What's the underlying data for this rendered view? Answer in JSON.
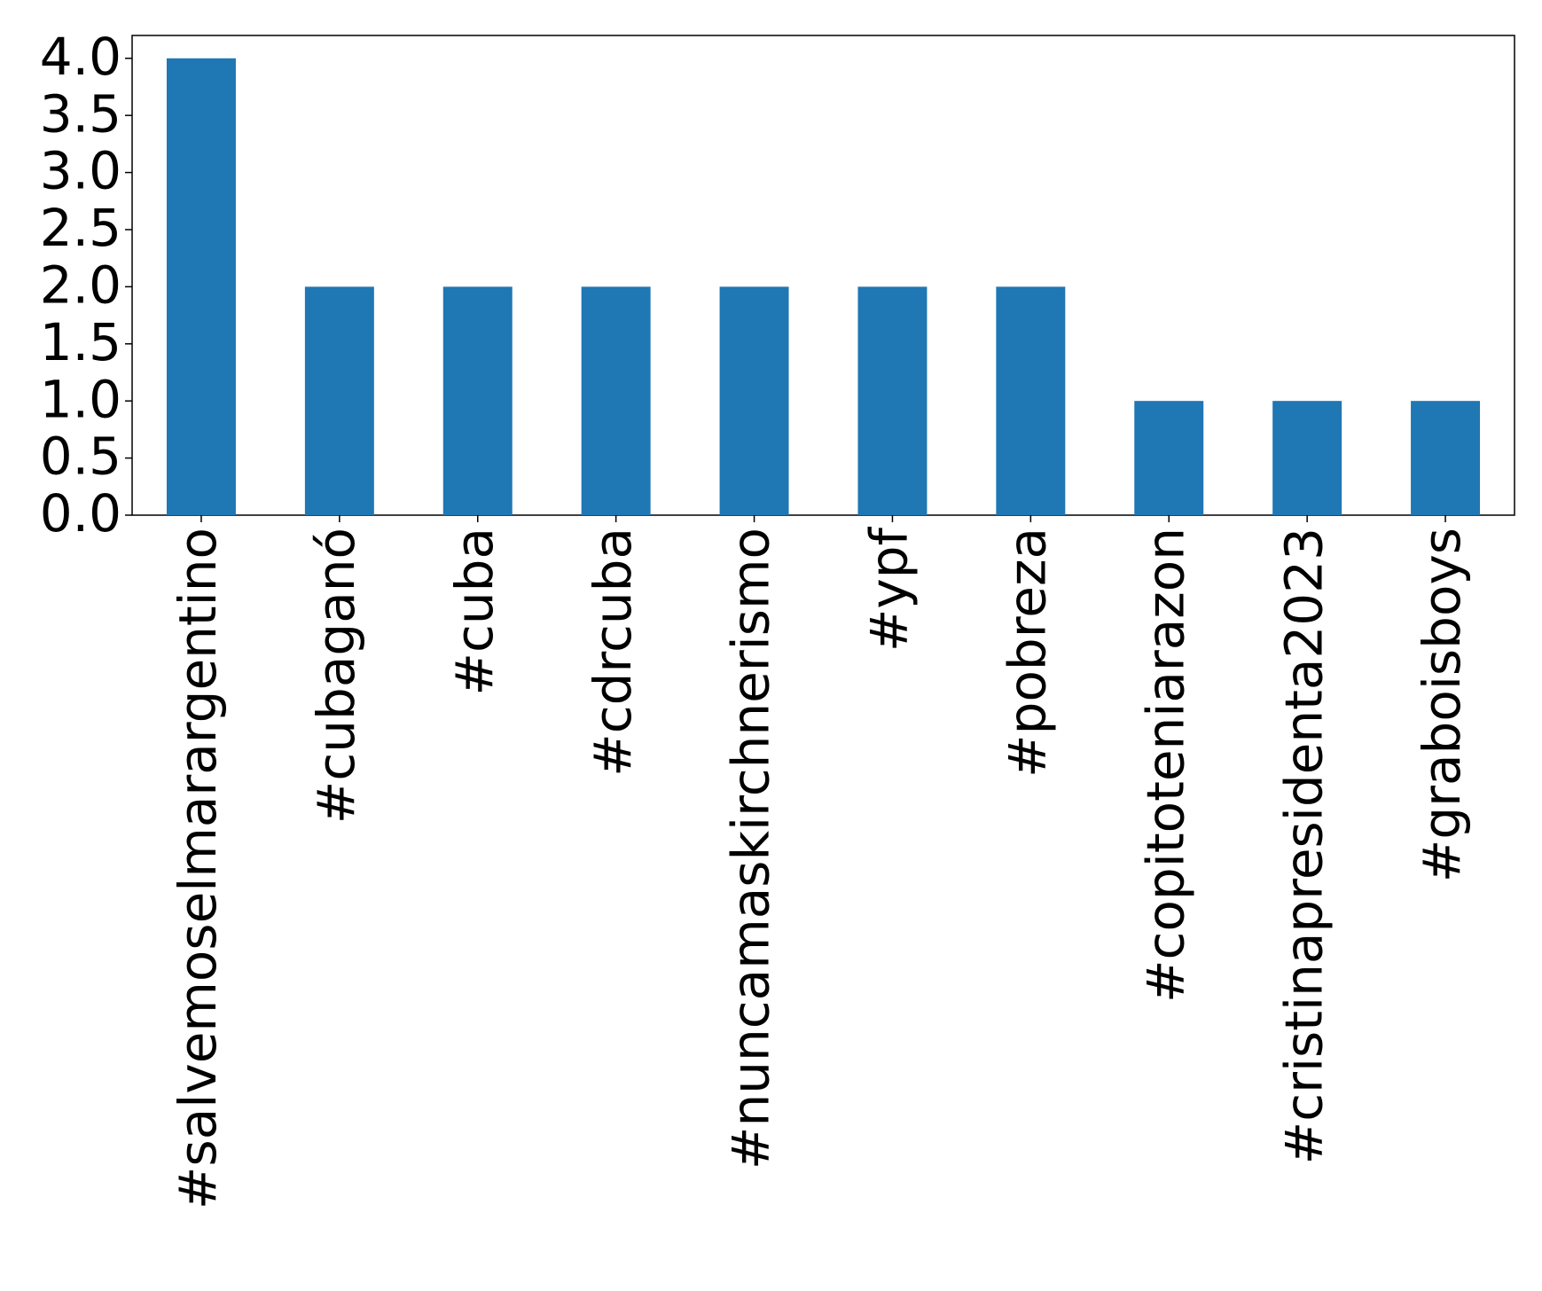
{
  "chart_data": {
    "type": "bar",
    "categories": [
      "#salvemoselmarargentino",
      "#cubaganó",
      "#cuba",
      "#cdrcuba",
      "#nuncamaskirchnerismo",
      "#ypf",
      "#pobreza",
      "#copitoteniarazon",
      "#cristinapresidenta2023",
      "#graboisboys"
    ],
    "values": [
      4,
      2,
      2,
      2,
      2,
      2,
      2,
      1,
      1,
      1
    ],
    "color": "#1f77b4",
    "ylim": [
      0,
      4.2
    ],
    "yticks": [
      {
        "value": 0,
        "label": "0.0"
      },
      {
        "value": 0.5,
        "label": "0.5"
      },
      {
        "value": 1,
        "label": "1.0"
      },
      {
        "value": 1.5,
        "label": "1.5"
      },
      {
        "value": 2,
        "label": "2.0"
      },
      {
        "value": 2.5,
        "label": "2.5"
      },
      {
        "value": 3,
        "label": "3.0"
      },
      {
        "value": 3.5,
        "label": "3.5"
      },
      {
        "value": 4,
        "label": "4.0"
      }
    ],
    "grid": false
  }
}
